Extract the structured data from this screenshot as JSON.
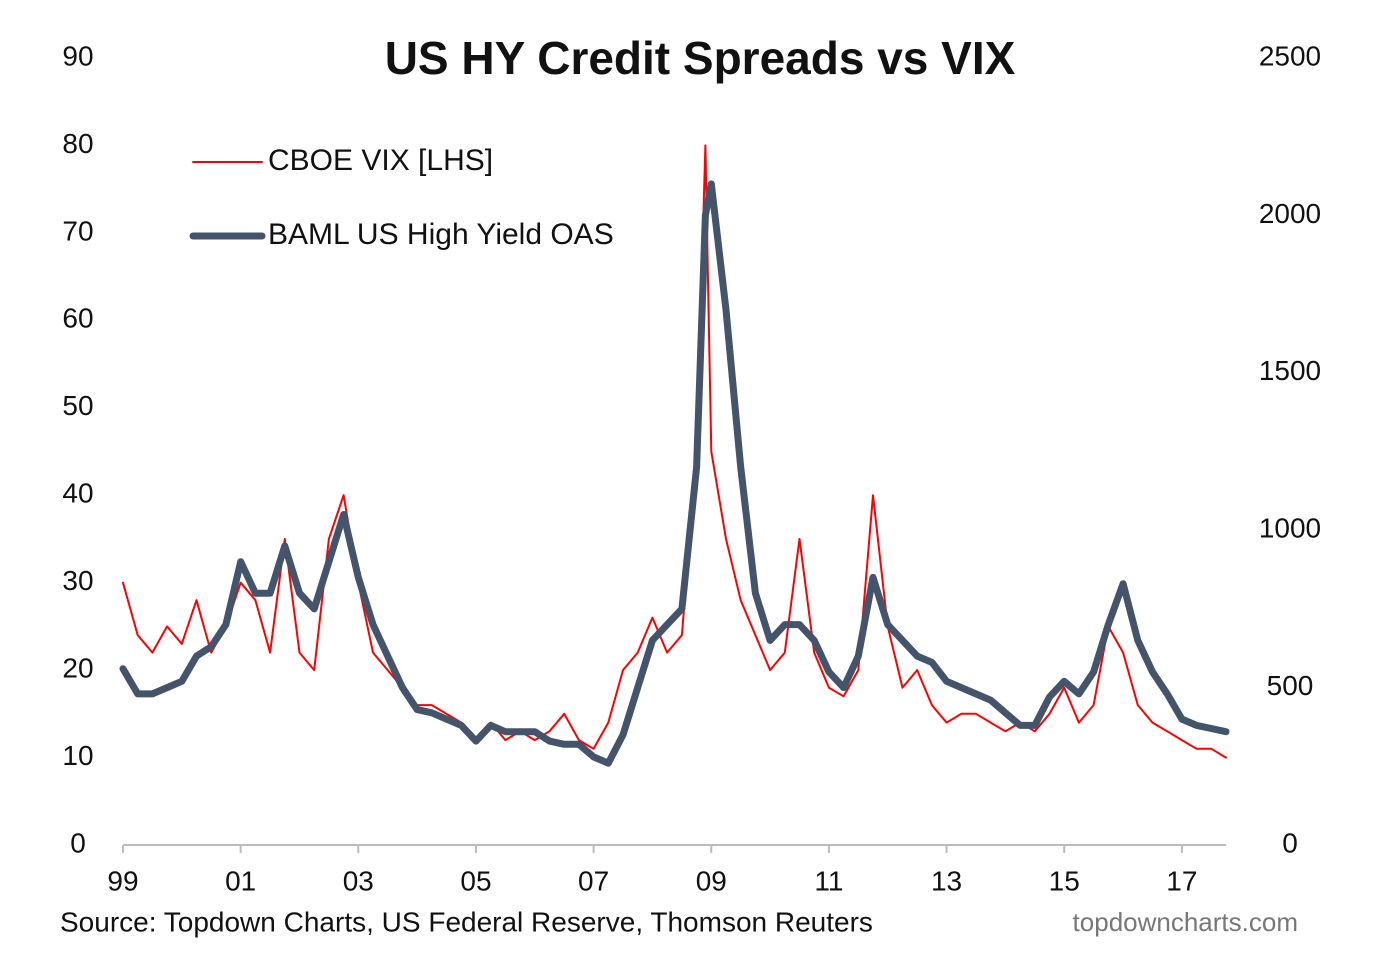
{
  "chart_data": {
    "type": "line",
    "title": "US HY Credit Spreads vs VIX",
    "source": "Source: Topdown Charts, US Federal Reserve, Thomson Reuters",
    "watermark": "topdowncharts.com",
    "x": [
      1999,
      1999.25,
      1999.5,
      1999.75,
      2000,
      2000.25,
      2000.5,
      2000.75,
      2001,
      2001.25,
      2001.5,
      2001.75,
      2002,
      2002.25,
      2002.5,
      2002.75,
      2003,
      2003.25,
      2003.5,
      2003.75,
      2004,
      2004.25,
      2004.5,
      2004.75,
      2005,
      2005.25,
      2005.5,
      2005.75,
      2006,
      2006.25,
      2006.5,
      2006.75,
      2007,
      2007.25,
      2007.5,
      2007.75,
      2008,
      2008.25,
      2008.5,
      2008.75,
      2008.9,
      2009,
      2009.25,
      2009.5,
      2009.75,
      2010,
      2010.25,
      2010.5,
      2010.75,
      2011,
      2011.25,
      2011.5,
      2011.75,
      2012,
      2012.25,
      2012.5,
      2012.75,
      2013,
      2013.25,
      2013.5,
      2013.75,
      2014,
      2014.25,
      2014.5,
      2014.75,
      2015,
      2015.25,
      2015.5,
      2015.75,
      2016,
      2016.25,
      2016.5,
      2016.75,
      2017,
      2017.25,
      2017.5,
      2017.75
    ],
    "series": [
      {
        "name": "CBOE VIX [LHS]",
        "color": "#ff0000",
        "axis": "y",
        "values": [
          30,
          24,
          22,
          25,
          23,
          28,
          22,
          25,
          30,
          28,
          22,
          35,
          22,
          20,
          35,
          40,
          30,
          22,
          20,
          18,
          16,
          16,
          15,
          14,
          12,
          14,
          12,
          13,
          12,
          13,
          15,
          12,
          11,
          14,
          20,
          22,
          26,
          22,
          24,
          45,
          80,
          45,
          35,
          28,
          24,
          20,
          22,
          35,
          22,
          18,
          17,
          20,
          40,
          25,
          18,
          20,
          16,
          14,
          15,
          15,
          14,
          13,
          14,
          13,
          15,
          18,
          14,
          16,
          25,
          22,
          16,
          14,
          13,
          12,
          11,
          11,
          10
        ]
      },
      {
        "name": "BAML US High Yield OAS",
        "color": "#44546a",
        "axis": "y2",
        "values": [
          560,
          480,
          480,
          500,
          520,
          600,
          630,
          700,
          900,
          800,
          800,
          950,
          800,
          750,
          900,
          1050,
          850,
          700,
          600,
          500,
          430,
          420,
          400,
          380,
          330,
          380,
          360,
          360,
          360,
          330,
          320,
          320,
          280,
          260,
          350,
          500,
          650,
          700,
          750,
          1200,
          2000,
          2100,
          1700,
          1200,
          800,
          650,
          700,
          700,
          650,
          550,
          500,
          600,
          850,
          700,
          650,
          600,
          580,
          520,
          500,
          480,
          460,
          420,
          380,
          380,
          470,
          520,
          480,
          550,
          700,
          830,
          650,
          550,
          480,
          400,
          380,
          370,
          360
        ]
      }
    ],
    "xlim": [
      1999,
      2017.75
    ],
    "xticks": [
      {
        "value": 1999,
        "label": "99"
      },
      {
        "value": 2001,
        "label": "01"
      },
      {
        "value": 2003,
        "label": "03"
      },
      {
        "value": 2005,
        "label": "05"
      },
      {
        "value": 2007,
        "label": "07"
      },
      {
        "value": 2009,
        "label": "09"
      },
      {
        "value": 2011,
        "label": "11"
      },
      {
        "value": 2013,
        "label": "13"
      },
      {
        "value": 2015,
        "label": "15"
      },
      {
        "value": 2017,
        "label": "17"
      }
    ],
    "ylim": [
      0,
      90
    ],
    "yticks": [
      0,
      10,
      20,
      30,
      40,
      50,
      60,
      70,
      80,
      90
    ],
    "y2lim": [
      0,
      2500
    ],
    "y2ticks": [
      0,
      500,
      1000,
      1500,
      2000,
      2500
    ],
    "legend": "top-left",
    "grid": false
  }
}
